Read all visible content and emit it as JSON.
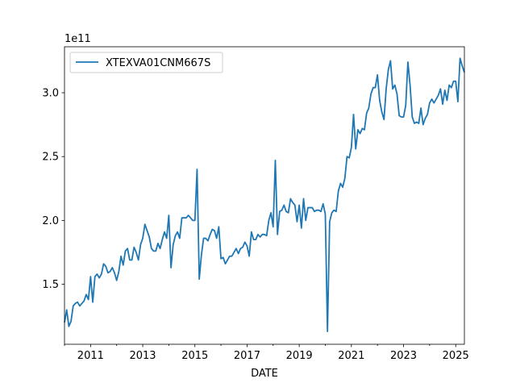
{
  "chart_data": {
    "type": "line",
    "xlabel": "DATE",
    "ylabel": "",
    "y_offset_label": "1e11",
    "x_range": [
      "2010-01",
      "2025-05"
    ],
    "x_ticks": [
      {
        "date": "2011-01",
        "label": "2011"
      },
      {
        "date": "2013-01",
        "label": "2013"
      },
      {
        "date": "2015-01",
        "label": "2015"
      },
      {
        "date": "2017-01",
        "label": "2017"
      },
      {
        "date": "2019-01",
        "label": "2019"
      },
      {
        "date": "2021-01",
        "label": "2021"
      },
      {
        "date": "2023-01",
        "label": "2023"
      },
      {
        "date": "2025-01",
        "label": "2025"
      }
    ],
    "y_range": [
      1.03,
      3.36
    ],
    "y_ticks": [
      {
        "value": 1.5,
        "label": "1.5"
      },
      {
        "value": 2.0,
        "label": "2.0"
      },
      {
        "value": 2.5,
        "label": "2.5"
      },
      {
        "value": 3.0,
        "label": "3.0"
      }
    ],
    "grid": false,
    "legend_position": "top-left",
    "series": [
      {
        "name": "XTEXVA01CNM667S",
        "color": "#1f77b4",
        "points": [
          [
            "2010-01",
            1.2
          ],
          [
            "2010-02",
            1.3
          ],
          [
            "2010-03",
            1.17
          ],
          [
            "2010-04",
            1.21
          ],
          [
            "2010-05",
            1.33
          ],
          [
            "2010-06",
            1.35
          ],
          [
            "2010-07",
            1.36
          ],
          [
            "2010-08",
            1.33
          ],
          [
            "2010-09",
            1.35
          ],
          [
            "2010-10",
            1.37
          ],
          [
            "2010-11",
            1.42
          ],
          [
            "2010-12",
            1.38
          ],
          [
            "2011-01",
            1.56
          ],
          [
            "2011-02",
            1.36
          ],
          [
            "2011-03",
            1.56
          ],
          [
            "2011-04",
            1.58
          ],
          [
            "2011-05",
            1.55
          ],
          [
            "2011-06",
            1.58
          ],
          [
            "2011-07",
            1.66
          ],
          [
            "2011-08",
            1.64
          ],
          [
            "2011-09",
            1.59
          ],
          [
            "2011-10",
            1.6
          ],
          [
            "2011-11",
            1.63
          ],
          [
            "2011-12",
            1.59
          ],
          [
            "2012-01",
            1.53
          ],
          [
            "2012-02",
            1.6
          ],
          [
            "2012-03",
            1.72
          ],
          [
            "2012-04",
            1.65
          ],
          [
            "2012-05",
            1.76
          ],
          [
            "2012-06",
            1.78
          ],
          [
            "2012-07",
            1.69
          ],
          [
            "2012-08",
            1.69
          ],
          [
            "2012-09",
            1.79
          ],
          [
            "2012-10",
            1.75
          ],
          [
            "2012-11",
            1.69
          ],
          [
            "2012-12",
            1.81
          ],
          [
            "2013-01",
            1.86
          ],
          [
            "2013-02",
            1.97
          ],
          [
            "2013-03",
            1.92
          ],
          [
            "2013-04",
            1.87
          ],
          [
            "2013-05",
            1.78
          ],
          [
            "2013-06",
            1.76
          ],
          [
            "2013-07",
            1.76
          ],
          [
            "2013-08",
            1.82
          ],
          [
            "2013-09",
            1.78
          ],
          [
            "2013-10",
            1.85
          ],
          [
            "2013-11",
            1.91
          ],
          [
            "2013-12",
            1.86
          ],
          [
            "2014-01",
            2.04
          ],
          [
            "2014-02",
            1.63
          ],
          [
            "2014-03",
            1.81
          ],
          [
            "2014-04",
            1.88
          ],
          [
            "2014-05",
            1.91
          ],
          [
            "2014-06",
            1.86
          ],
          [
            "2014-07",
            2.02
          ],
          [
            "2014-08",
            2.02
          ],
          [
            "2014-09",
            2.02
          ],
          [
            "2014-10",
            2.04
          ],
          [
            "2014-11",
            2.02
          ],
          [
            "2014-12",
            2.0
          ],
          [
            "2015-01",
            2.0
          ],
          [
            "2015-02",
            2.4
          ],
          [
            "2015-03",
            1.54
          ],
          [
            "2015-04",
            1.73
          ],
          [
            "2015-05",
            1.86
          ],
          [
            "2015-06",
            1.86
          ],
          [
            "2015-07",
            1.84
          ],
          [
            "2015-08",
            1.89
          ],
          [
            "2015-09",
            1.93
          ],
          [
            "2015-10",
            1.92
          ],
          [
            "2015-11",
            1.86
          ],
          [
            "2015-12",
            1.95
          ],
          [
            "2016-01",
            1.7
          ],
          [
            "2016-02",
            1.71
          ],
          [
            "2016-03",
            1.66
          ],
          [
            "2016-04",
            1.69
          ],
          [
            "2016-05",
            1.72
          ],
          [
            "2016-06",
            1.72
          ],
          [
            "2016-07",
            1.75
          ],
          [
            "2016-08",
            1.78
          ],
          [
            "2016-09",
            1.74
          ],
          [
            "2016-10",
            1.78
          ],
          [
            "2016-11",
            1.79
          ],
          [
            "2016-12",
            1.83
          ],
          [
            "2017-01",
            1.8
          ],
          [
            "2017-02",
            1.72
          ],
          [
            "2017-03",
            1.91
          ],
          [
            "2017-04",
            1.85
          ],
          [
            "2017-05",
            1.85
          ],
          [
            "2017-06",
            1.89
          ],
          [
            "2017-07",
            1.87
          ],
          [
            "2017-08",
            1.89
          ],
          [
            "2017-09",
            1.89
          ],
          [
            "2017-10",
            1.88
          ],
          [
            "2017-11",
            2.0
          ],
          [
            "2017-12",
            2.06
          ],
          [
            "2018-01",
            1.95
          ],
          [
            "2018-02",
            2.47
          ],
          [
            "2018-03",
            1.89
          ],
          [
            "2018-04",
            2.07
          ],
          [
            "2018-05",
            2.08
          ],
          [
            "2018-06",
            2.12
          ],
          [
            "2018-07",
            2.07
          ],
          [
            "2018-08",
            2.06
          ],
          [
            "2018-09",
            2.17
          ],
          [
            "2018-10",
            2.14
          ],
          [
            "2018-11",
            2.12
          ],
          [
            "2018-12",
            1.99
          ],
          [
            "2019-01",
            2.12
          ],
          [
            "2019-02",
            1.94
          ],
          [
            "2019-03",
            2.17
          ],
          [
            "2019-04",
            2.0
          ],
          [
            "2019-05",
            2.1
          ],
          [
            "2019-06",
            2.1
          ],
          [
            "2019-07",
            2.1
          ],
          [
            "2019-08",
            2.07
          ],
          [
            "2019-09",
            2.08
          ],
          [
            "2019-10",
            2.08
          ],
          [
            "2019-11",
            2.07
          ],
          [
            "2019-12",
            2.13
          ],
          [
            "2020-01",
            2.05
          ],
          [
            "2020-02",
            1.13
          ],
          [
            "2020-03",
            1.99
          ],
          [
            "2020-04",
            2.06
          ],
          [
            "2020-05",
            2.08
          ],
          [
            "2020-06",
            2.07
          ],
          [
            "2020-07",
            2.23
          ],
          [
            "2020-08",
            2.29
          ],
          [
            "2020-09",
            2.26
          ],
          [
            "2020-10",
            2.33
          ],
          [
            "2020-11",
            2.5
          ],
          [
            "2020-12",
            2.49
          ],
          [
            "2021-01",
            2.57
          ],
          [
            "2021-02",
            2.83
          ],
          [
            "2021-03",
            2.56
          ],
          [
            "2021-04",
            2.71
          ],
          [
            "2021-05",
            2.68
          ],
          [
            "2021-06",
            2.72
          ],
          [
            "2021-07",
            2.71
          ],
          [
            "2021-08",
            2.84
          ],
          [
            "2021-09",
            2.88
          ],
          [
            "2021-10",
            2.99
          ],
          [
            "2021-11",
            3.04
          ],
          [
            "2021-12",
            3.04
          ],
          [
            "2022-01",
            3.14
          ],
          [
            "2022-02",
            2.94
          ],
          [
            "2022-03",
            2.85
          ],
          [
            "2022-04",
            2.79
          ],
          [
            "2022-05",
            3.03
          ],
          [
            "2022-06",
            3.18
          ],
          [
            "2022-07",
            3.25
          ],
          [
            "2022-08",
            3.03
          ],
          [
            "2022-09",
            3.06
          ],
          [
            "2022-10",
            2.99
          ],
          [
            "2022-11",
            2.82
          ],
          [
            "2022-12",
            2.81
          ],
          [
            "2023-01",
            2.81
          ],
          [
            "2023-02",
            2.9
          ],
          [
            "2023-03",
            3.24
          ],
          [
            "2023-04",
            3.06
          ],
          [
            "2023-05",
            2.81
          ],
          [
            "2023-06",
            2.76
          ],
          [
            "2023-07",
            2.77
          ],
          [
            "2023-08",
            2.76
          ],
          [
            "2023-09",
            2.88
          ],
          [
            "2023-10",
            2.75
          ],
          [
            "2023-11",
            2.8
          ],
          [
            "2023-12",
            2.83
          ],
          [
            "2024-01",
            2.92
          ],
          [
            "2024-02",
            2.95
          ],
          [
            "2024-03",
            2.92
          ],
          [
            "2024-04",
            2.95
          ],
          [
            "2024-05",
            2.98
          ],
          [
            "2024-06",
            3.03
          ],
          [
            "2024-07",
            2.91
          ],
          [
            "2024-08",
            3.02
          ],
          [
            "2024-09",
            2.94
          ],
          [
            "2024-10",
            3.06
          ],
          [
            "2024-11",
            3.04
          ],
          [
            "2024-12",
            3.09
          ],
          [
            "2025-01",
            3.09
          ],
          [
            "2025-02",
            2.93
          ],
          [
            "2025-03",
            3.27
          ],
          [
            "2025-04",
            3.21
          ],
          [
            "2025-05",
            3.16
          ]
        ]
      }
    ]
  }
}
